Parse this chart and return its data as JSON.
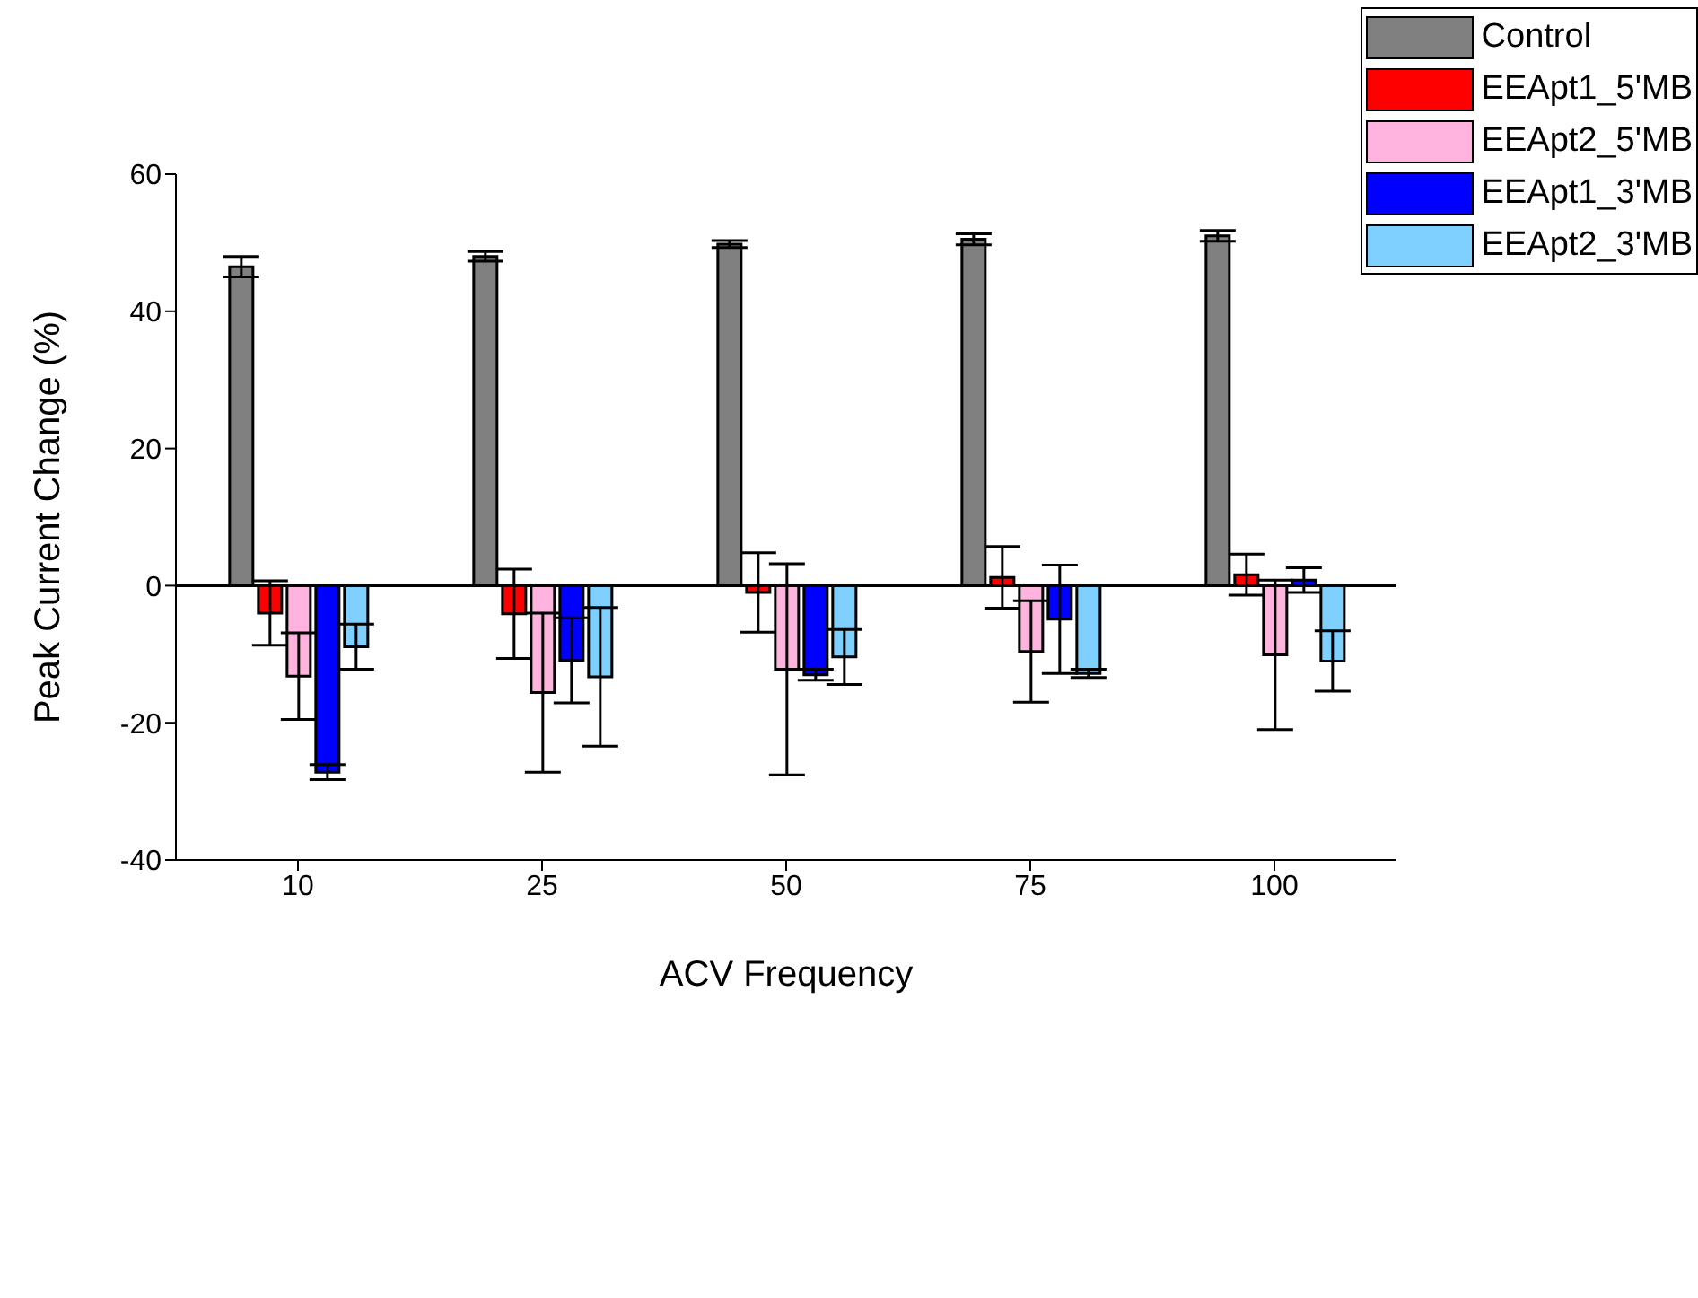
{
  "chart_data": {
    "type": "bar",
    "xlabel": "ACV Frequency",
    "ylabel": "Peak Current Change (%)",
    "categories": [
      "10",
      "25",
      "50",
      "75",
      "100"
    ],
    "series": [
      {
        "name": "Control",
        "color": "#808080",
        "values": [
          46.5,
          48,
          49.8,
          50.5,
          51
        ],
        "errors": [
          1.5,
          0.7,
          0.5,
          0.8,
          0.8
        ]
      },
      {
        "name": "EEApt1_5'MB",
        "color": "#ff0000",
        "values": [
          -4,
          -4.1,
          -1,
          1.2,
          1.6
        ],
        "errors": [
          4.7,
          6.5,
          5.8,
          4.5,
          3
        ]
      },
      {
        "name": "EEApt2_5'MB",
        "color": "#ffb3de",
        "values": [
          -13.2,
          -15.6,
          -12.2,
          -9.6,
          -10.1
        ],
        "errors": [
          6.3,
          11.6,
          15.4,
          7.4,
          10.9
        ]
      },
      {
        "name": "EEApt1_3'MB",
        "color": "#0000ff",
        "values": [
          -27.2,
          -10.9,
          -13,
          -4.9,
          0.8
        ],
        "errors": [
          1.1,
          6.2,
          0.8,
          7.9,
          1.8
        ]
      },
      {
        "name": "EEApt2_3'MB",
        "color": "#80d0ff",
        "values": [
          -8.9,
          -13.3,
          -10.4,
          -12.8,
          -11
        ],
        "errors": [
          3.3,
          10.1,
          4,
          0.6,
          4.4
        ]
      }
    ],
    "ylim": [
      -40,
      60
    ],
    "yticks": [
      -40,
      -20,
      0,
      20,
      40,
      60
    ],
    "ref_lines": [
      {
        "axis": "y",
        "value": 0
      }
    ],
    "grid": false,
    "legend": "top right"
  }
}
